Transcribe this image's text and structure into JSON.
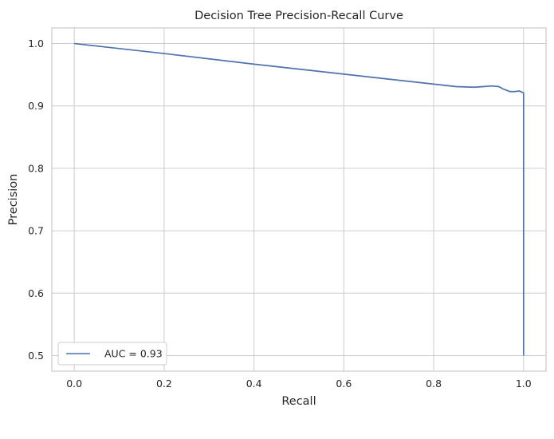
{
  "chart_data": {
    "type": "line",
    "title": "Decision Tree Precision-Recall Curve",
    "xlabel": "Recall",
    "ylabel": "Precision",
    "xlim": [
      -0.05,
      1.05
    ],
    "ylim": [
      0.475,
      1.025
    ],
    "x_ticks": [
      0.0,
      0.2,
      0.4,
      0.6,
      0.8,
      1.0
    ],
    "x_tick_labels": [
      "0.0",
      "0.2",
      "0.4",
      "0.6",
      "0.8",
      "1.0"
    ],
    "y_ticks": [
      0.5,
      0.6,
      0.7,
      0.8,
      0.9,
      1.0
    ],
    "y_tick_labels": [
      "0.5",
      "0.6",
      "0.7",
      "0.8",
      "0.9",
      "1.0"
    ],
    "grid": true,
    "legend_position": "lower-left",
    "series": [
      {
        "name": "AUC = 0.93",
        "color": "#4c72b0",
        "x": [
          0.0,
          0.2,
          0.4,
          0.6,
          0.8,
          0.85,
          0.89,
          0.91,
          0.93,
          0.945,
          0.955,
          0.97,
          0.98,
          0.99,
          1.0,
          1.0
        ],
        "y": [
          1.0,
          0.984,
          0.967,
          0.951,
          0.935,
          0.931,
          0.93,
          0.931,
          0.932,
          0.931,
          0.927,
          0.923,
          0.923,
          0.924,
          0.921,
          0.5
        ]
      }
    ]
  }
}
